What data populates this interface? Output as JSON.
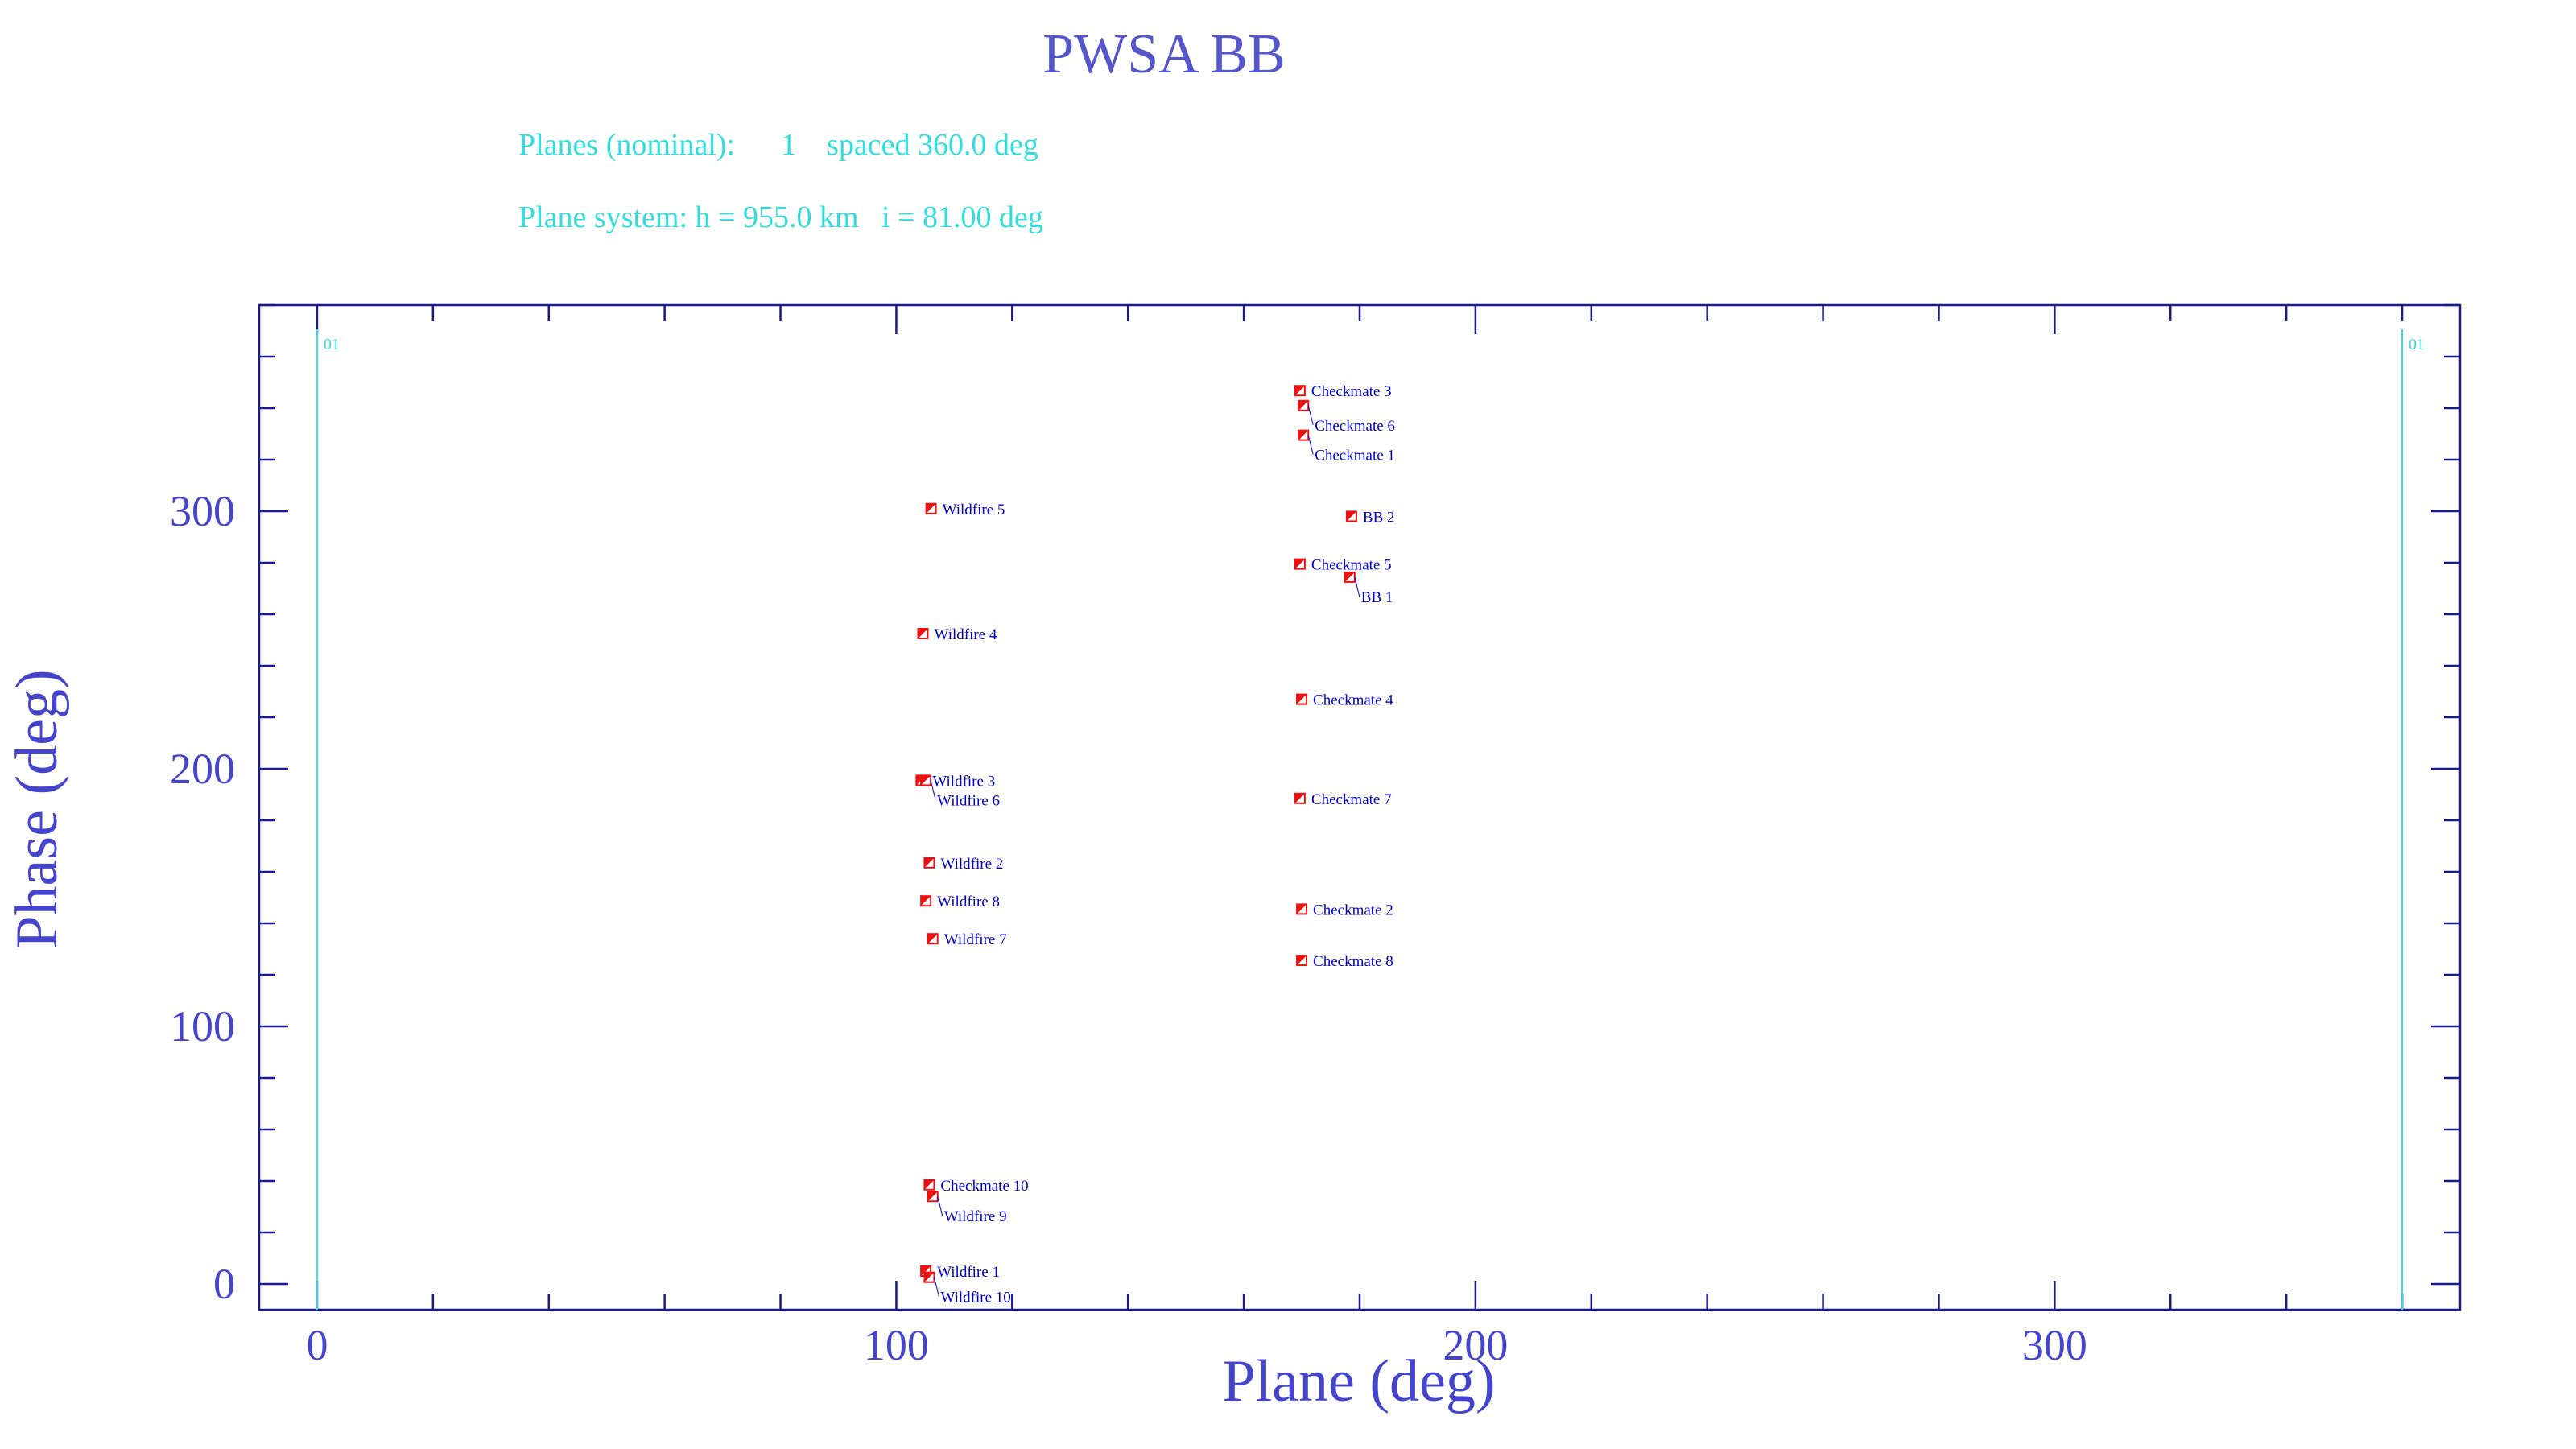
{
  "chart_data": {
    "type": "scatter",
    "title": "PWSA BB",
    "subtitle_lines": [
      "Planes (nominal):      1    spaced 360.0 deg",
      "Plane system: h = 955.0 km   i = 81.00 deg"
    ],
    "xlabel": "Plane (deg)",
    "ylabel": "Phase (deg)",
    "xlim": [
      -10,
      370
    ],
    "ylim": [
      -10,
      380
    ],
    "xticks": [
      0,
      100,
      200,
      300
    ],
    "yticks": [
      0,
      100,
      200,
      300
    ],
    "minor_tick_step": 20,
    "grid": false,
    "plane_lines": [
      {
        "x": 0,
        "label": "01"
      },
      {
        "x": 360,
        "label": "01"
      }
    ],
    "points": [
      {
        "label": "Wildfire 5",
        "x": 106.0,
        "y": 301
      },
      {
        "label": "Wildfire 4",
        "x": 104.6,
        "y": 252.5
      },
      {
        "label": "Wildfire 3",
        "x": 104.3,
        "y": 195.5
      },
      {
        "label": "Wildfire 6",
        "x": 105.1,
        "y": 195.5
      },
      {
        "label": "Wildfire 2",
        "x": 105.7,
        "y": 163.5
      },
      {
        "label": "Wildfire 8",
        "x": 105.1,
        "y": 148.7
      },
      {
        "label": "Wildfire 7",
        "x": 106.3,
        "y": 134
      },
      {
        "label": "Checkmate 10",
        "x": 105.7,
        "y": 38.5
      },
      {
        "label": "Wildfire 9",
        "x": 106.3,
        "y": 34
      },
      {
        "label": "Wildfire 1",
        "x": 105.1,
        "y": 5
      },
      {
        "label": "Wildfire 10",
        "x": 105.7,
        "y": 2.6
      },
      {
        "label": "Checkmate 3",
        "x": 169.7,
        "y": 346.8
      },
      {
        "label": "Checkmate 6",
        "x": 170.3,
        "y": 341
      },
      {
        "label": "Checkmate 1",
        "x": 170.3,
        "y": 329.5
      },
      {
        "label": "BB 2",
        "x": 178.6,
        "y": 298
      },
      {
        "label": "Checkmate 5",
        "x": 169.7,
        "y": 279.5
      },
      {
        "label": "BB 1",
        "x": 178.3,
        "y": 274.4
      },
      {
        "label": "Checkmate 4",
        "x": 170.0,
        "y": 227
      },
      {
        "label": "Checkmate 7",
        "x": 169.7,
        "y": 188.5
      },
      {
        "label": "Checkmate 2",
        "x": 170.0,
        "y": 145.5
      },
      {
        "label": "Checkmate 8",
        "x": 170.0,
        "y": 125.6
      }
    ],
    "colors": {
      "title": "#5555cc",
      "axis_text": "#4444cc",
      "frame": "#1a1a8c",
      "info_text": "#33dddd",
      "plane_line": "#33dddd",
      "marker": "#ee1111",
      "point_label": "#0000cc"
    },
    "marker_icon": "half-filled-square"
  }
}
